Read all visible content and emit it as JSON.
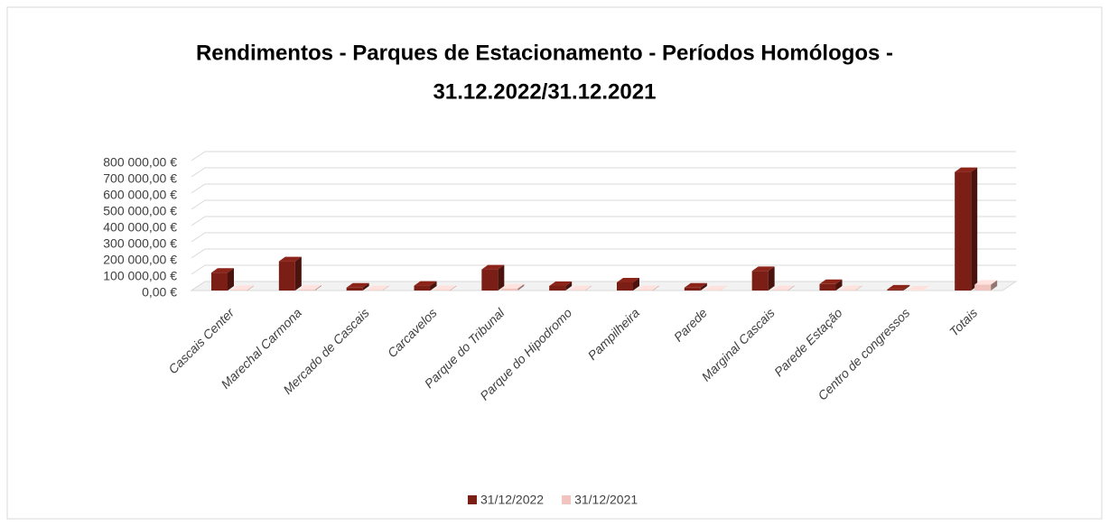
{
  "chart_data": {
    "type": "bar3d",
    "title": [
      "Rendimentos - Parques de Estacionamento - Períodos Homólogos -",
      "31.12.2022/31.12.2021"
    ],
    "categories": [
      "Cascais Center",
      "Marechal Carmona",
      "Mercado de Cascais",
      "Carcavelos",
      "Parque do Tribunal",
      "Parque do Hipodromo",
      "Pampilheira",
      "Parede",
      "Marginal Cascais",
      "Parede Estação",
      "Centro de congressos",
      "Totais"
    ],
    "series": [
      {
        "name": "31/12/2022",
        "color": "#7b1f16",
        "values": [
          110000,
          180000,
          18000,
          30000,
          130000,
          28000,
          50000,
          18000,
          120000,
          40000,
          6000,
          730000
        ]
      },
      {
        "name": "31/12/2021",
        "color": "#f2c4c0",
        "values": [
          3000,
          5000,
          2000,
          3000,
          12000,
          2000,
          3000,
          1000,
          3000,
          2000,
          0,
          36000
        ]
      }
    ],
    "ylim": [
      0,
      800000
    ],
    "yticks": [
      {
        "value": 0,
        "label": "0,00 €"
      },
      {
        "value": 100000,
        "label": "100 000,00 €"
      },
      {
        "value": 200000,
        "label": "200 000,00 €"
      },
      {
        "value": 300000,
        "label": "300 000,00 €"
      },
      {
        "value": 400000,
        "label": "400 000,00 €"
      },
      {
        "value": 500000,
        "label": "500 000,00 €"
      },
      {
        "value": 600000,
        "label": "600 000,00 €"
      },
      {
        "value": 700000,
        "label": "700 000,00 €"
      },
      {
        "value": 800000,
        "label": "800 000,00 €"
      }
    ],
    "grid": true
  }
}
